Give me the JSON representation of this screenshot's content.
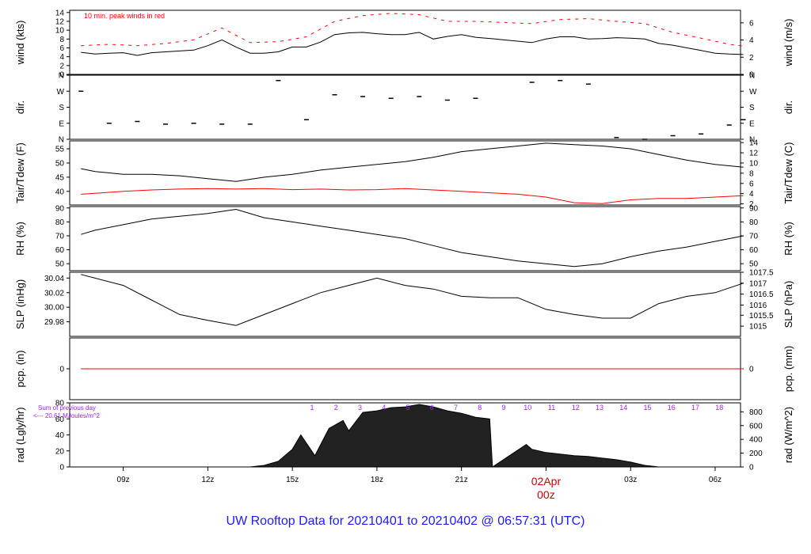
{
  "title": "UW Rooftop Data for 20210401  to  20210402 @ 06:57:31  (UTC)",
  "colors": {
    "main": "#000000",
    "accent": "#ff0000",
    "purple": "#a020f0",
    "title": "#1a1aff"
  },
  "chart_data": [
    {
      "type": "line",
      "panel": "wind",
      "ylabel_left": "wind (kts)",
      "ylabel_right": "wind (m/s)",
      "annotation": "10 min. peak winds in red",
      "ylim": [
        0,
        14.5
      ],
      "ticks_left": [
        0,
        2,
        4,
        6,
        8,
        10,
        12,
        14
      ],
      "ticks_right": [
        {
          "label": "0",
          "v": 0
        },
        {
          "label": "2",
          "v": 3.89
        },
        {
          "label": "4",
          "v": 7.78
        },
        {
          "label": "6",
          "v": 11.66
        }
      ],
      "series": [
        {
          "x": [
            7.5,
            8,
            8.5,
            9,
            9.5,
            10,
            10.5,
            11,
            11.5,
            12,
            12.5,
            13,
            13.5,
            14,
            14.5,
            15,
            15.5,
            16,
            16.5,
            17,
            17.5,
            18,
            18.5,
            19,
            19.5,
            20,
            20.5,
            21,
            21.5,
            22.2,
            23.5,
            24,
            24.5,
            25,
            25.5,
            26,
            26.5,
            27,
            27.5,
            28,
            28.5,
            29,
            29.5,
            30,
            30.5,
            31
          ],
          "values": [
            5,
            4.6,
            4.8,
            4.9,
            4.3,
            4.9,
            5.1,
            5.3,
            5.5,
            6.5,
            7.8,
            6.2,
            4.8,
            4.8,
            5.1,
            6.2,
            6.2,
            7.3,
            9.0,
            9.4,
            9.5,
            9.2,
            9.0,
            9.0,
            9.5,
            8.0,
            8.6,
            9.0,
            8.4,
            8.0,
            7.2,
            8.0,
            8.5,
            8.5,
            8.0,
            8.1,
            8.3,
            8.2,
            8.0,
            7.0,
            6.6,
            6.0,
            5.4,
            4.8,
            4.6,
            4.5
          ]
        },
        {
          "x": [
            7.5,
            8.5,
            9.5,
            10.5,
            11.5,
            12.5,
            13.5,
            14.5,
            15.5,
            16.5,
            17.5,
            18.5,
            19.5,
            20.5,
            21.5,
            23.5,
            24.5,
            25.5,
            26.5,
            27.5,
            28.5,
            29.5,
            30.5,
            31
          ],
          "values": [
            6.5,
            6.8,
            6.5,
            7,
            7.8,
            10.5,
            7.2,
            7.4,
            8.5,
            12,
            13.3,
            13.8,
            13.5,
            12,
            12,
            11.5,
            12.4,
            12.6,
            12,
            11.5,
            9.5,
            8.2,
            6.8,
            6.4
          ],
          "style": "dash"
        }
      ]
    },
    {
      "type": "scatter",
      "panel": "dir",
      "ylabel_left": "dir.",
      "ylabel_right": "dir.",
      "ylim": [
        0,
        360
      ],
      "ticks": [
        {
          "label": "N",
          "v": 0
        },
        {
          "label": "E",
          "v": 90
        },
        {
          "label": "S",
          "v": 180
        },
        {
          "label": "W",
          "v": 270
        },
        {
          "label": "N",
          "v": 360
        }
      ],
      "x": [
        7.5,
        8.5,
        9.5,
        10.5,
        11.5,
        12.5,
        13.5,
        14.5,
        15.5,
        16.5,
        17.5,
        18.5,
        19.5,
        20.5,
        21.5,
        23.5,
        24.5,
        25.5,
        26.5,
        27.5,
        28.5,
        29.5,
        30.5,
        31
      ],
      "values": [
        270,
        90,
        100,
        85,
        90,
        85,
        85,
        330,
        110,
        250,
        240,
        230,
        240,
        220,
        230,
        320,
        330,
        310,
        10,
        0,
        20,
        30,
        80,
        110
      ]
    },
    {
      "type": "line",
      "panel": "temp",
      "ylabel_left": "Tair/Tdew (F)",
      "ylabel_right": "Tair/Tdew (C)",
      "ylim": [
        35.2,
        57.8
      ],
      "ticks_left": [
        40,
        45,
        50,
        55
      ],
      "ticks_right": [
        {
          "label": "2",
          "v": 35.6
        },
        {
          "label": "4",
          "v": 39.2
        },
        {
          "label": "6",
          "v": 42.8
        },
        {
          "label": "8",
          "v": 46.4
        },
        {
          "label": "10",
          "v": 50
        },
        {
          "label": "12",
          "v": 53.6
        },
        {
          "label": "14",
          "v": 57.2
        }
      ],
      "series": [
        {
          "name": "Tair",
          "x": [
            7.5,
            8,
            9,
            10,
            11,
            12,
            13,
            14,
            15,
            16,
            17,
            18,
            19,
            20,
            21,
            22,
            23,
            24,
            25,
            26,
            27,
            28,
            29,
            30,
            31
          ],
          "values": [
            48,
            47,
            46,
            46,
            45.5,
            44.5,
            43.5,
            45,
            46,
            47.5,
            48.5,
            49.5,
            50.5,
            52,
            54,
            55,
            56,
            57,
            56.5,
            56,
            55,
            53,
            51,
            49.5,
            48.5
          ]
        },
        {
          "name": "Tdew",
          "x": [
            7.5,
            8,
            9,
            10,
            11,
            12,
            13,
            14,
            15,
            16,
            17,
            18,
            19,
            20,
            21,
            22,
            23,
            24,
            25,
            26,
            27,
            28,
            29,
            30,
            31
          ],
          "values": [
            39,
            39.3,
            40,
            40.5,
            40.8,
            41,
            40.8,
            41,
            40.6,
            40.8,
            40.5,
            40.6,
            41,
            40.5,
            40,
            39.5,
            39,
            38,
            36,
            35.7,
            37,
            37.5,
            37.5,
            38,
            38.5
          ]
        }
      ]
    },
    {
      "type": "line",
      "panel": "rh",
      "ylabel_left": "RH (%)",
      "ylabel_right": "RH (%)",
      "ylim": [
        45,
        91
      ],
      "ticks": [
        50,
        60,
        70,
        80,
        90
      ],
      "x": [
        7.5,
        8,
        9,
        10,
        11,
        12,
        13,
        14,
        15,
        16,
        17,
        18,
        19,
        20,
        21,
        22,
        23,
        24,
        25,
        26,
        27,
        28,
        29,
        30,
        31
      ],
      "values": [
        71,
        74,
        78,
        82,
        84,
        86,
        89,
        83,
        80,
        77,
        74,
        71,
        68,
        63,
        58,
        55,
        52,
        50,
        48,
        50,
        55,
        59,
        62,
        66,
        70
      ]
    },
    {
      "type": "line",
      "panel": "slp",
      "ylabel_left": "SLP (inHg)",
      "ylabel_right": "SLP (hPa)",
      "ylim": [
        29.96,
        30.048
      ],
      "ticks_left": [
        29.98,
        30.0,
        30.02,
        30.04
      ],
      "ticks_right": [
        {
          "label": "1015",
          "v": 29.974
        },
        {
          "label": "1015.5",
          "v": 29.989
        },
        {
          "label": "1016",
          "v": 30.003
        },
        {
          "label": "1016.5",
          "v": 30.018
        },
        {
          "label": "1017",
          "v": 30.033
        },
        {
          "label": "1017.5",
          "v": 30.048
        }
      ],
      "x": [
        7.5,
        8,
        9,
        10,
        11,
        12,
        13,
        14,
        15,
        16,
        17,
        18,
        19,
        20,
        21,
        22,
        23,
        24,
        25,
        26,
        27,
        28,
        29,
        30,
        31
      ],
      "values": [
        30.045,
        30.04,
        30.03,
        30.01,
        29.99,
        29.982,
        29.975,
        29.99,
        30.005,
        30.02,
        30.03,
        30.04,
        30.03,
        30.025,
        30.015,
        30.013,
        30.013,
        29.997,
        29.99,
        29.985,
        29.985,
        30.005,
        30.015,
        30.02,
        30.033
      ]
    },
    {
      "type": "line",
      "panel": "pcp",
      "ylabel_left": "pcp. (in)",
      "ylabel_right": "pcp. (mm)",
      "ylim": [
        -1,
        1
      ],
      "ticks_left": [
        0
      ],
      "ticks_right": [
        {
          "label": "0",
          "v": 0
        }
      ],
      "x": [
        7.5,
        31
      ],
      "values": [
        0,
        0
      ]
    },
    {
      "type": "area",
      "panel": "rad",
      "ylabel_left": "rad (Lgly/hr)",
      "ylabel_right": "rad (W/m^2)",
      "ylim": [
        0,
        80
      ],
      "ticks_left": [
        0,
        20,
        40,
        60,
        80
      ],
      "ticks_right": [
        {
          "label": "0",
          "v": 0
        },
        {
          "label": "200",
          "v": 17.2
        },
        {
          "label": "400",
          "v": 34.4
        },
        {
          "label": "600",
          "v": 51.6
        },
        {
          "label": "800",
          "v": 68.8
        }
      ],
      "annotation_1": "Sum of previous day",
      "annotation_2": "<--- 20.61 MJoules/m^2",
      "hour_labels": [
        "1",
        "2",
        "3",
        "4",
        "5",
        "6",
        "7",
        "8",
        "9",
        "10",
        "11",
        "12",
        "13",
        "14",
        "15",
        "16",
        "17",
        "18"
      ],
      "x": [
        13.5,
        14,
        14.5,
        15,
        15.3,
        15.8,
        16.3,
        16.8,
        17,
        17.5,
        18,
        18.5,
        19,
        19.5,
        20,
        20.5,
        21,
        21.5,
        22,
        22.1,
        23.3,
        23.5,
        24,
        24.5,
        25,
        25.5,
        26,
        26.5,
        27,
        27.5,
        28
      ],
      "values": [
        0,
        2,
        7,
        22,
        40,
        14,
        48,
        58,
        45,
        68,
        70,
        74,
        75,
        78,
        75,
        70,
        67,
        62,
        60,
        0,
        28,
        22,
        18,
        16,
        14,
        13,
        11,
        9,
        6,
        2,
        0
      ]
    }
  ],
  "xaxis": {
    "xlim": [
      7.1,
      30.9
    ],
    "ticks": [
      {
        "label": "09z",
        "v": 9
      },
      {
        "label": "12z",
        "v": 12
      },
      {
        "label": "15z",
        "v": 15
      },
      {
        "label": "18z",
        "v": 18
      },
      {
        "label": "21z",
        "v": 21
      },
      {
        "label": "03z",
        "v": 27
      },
      {
        "label": "06z",
        "v": 30
      }
    ],
    "day_label": "02Apr",
    "day_sub": "00z",
    "day_v": 24
  }
}
